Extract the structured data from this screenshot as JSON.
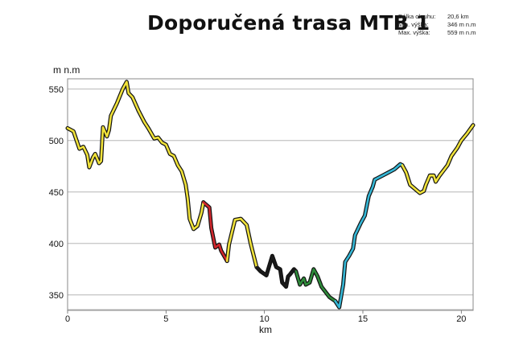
{
  "header": {
    "title": "Doporučená trasa MTB 1",
    "stats": [
      {
        "label": "Délka okruhu:",
        "value": "20,6 km"
      },
      {
        "label": "Min. výška:",
        "value": "346 m n.m"
      },
      {
        "label": "Max. výška:",
        "value": "559 m n.m"
      }
    ]
  },
  "chart_data": {
    "type": "line",
    "title": "Doporučená trasa MTB 1",
    "xlabel": "km",
    "ylabel": "m n.m",
    "xlim": [
      0,
      20.6
    ],
    "ylim": [
      335,
      560
    ],
    "x_ticks": [
      0,
      5,
      10,
      15,
      20
    ],
    "y_ticks": [
      350,
      400,
      450,
      500,
      550
    ],
    "grid": "horizontal",
    "segments": [
      {
        "color": "#f0e23a",
        "x": [
          0,
          0.3,
          0.6,
          0.8,
          1.0,
          1.1,
          1.3,
          1.4,
          1.6,
          1.7,
          1.8,
          2.0,
          2.1,
          2.2,
          2.5,
          2.8,
          3.0,
          3.1,
          3.3,
          3.6,
          3.9,
          4.1,
          4.4,
          4.6,
          4.8,
          5.0,
          5.2,
          5.4,
          5.6,
          5.8,
          6.0,
          6.1,
          6.2,
          6.4,
          6.6,
          6.8,
          6.9
        ],
        "y": [
          512,
          509,
          492,
          494,
          486,
          474,
          484,
          487,
          478,
          480,
          513,
          504,
          510,
          524,
          536,
          550,
          557,
          546,
          542,
          529,
          518,
          512,
          502,
          503,
          498,
          496,
          487,
          485,
          476,
          470,
          457,
          444,
          424,
          414,
          417,
          430,
          440
        ]
      },
      {
        "color": "#d0262c",
        "x": [
          6.9,
          7.2,
          7.3,
          7.5,
          7.7,
          7.8,
          8.1
        ],
        "y": [
          440,
          435,
          415,
          396,
          399,
          393,
          383
        ]
      },
      {
        "color": "#f0e23a",
        "x": [
          8.1,
          8.2,
          8.5,
          8.8,
          9.1,
          9.3,
          9.6
        ],
        "y": [
          383,
          399,
          423,
          424,
          418,
          400,
          377
        ]
      },
      {
        "color": "#1a1a1a",
        "x": [
          9.6,
          9.8,
          10.1,
          10.4,
          10.6,
          10.8,
          10.9,
          11.1,
          11.2,
          11.3,
          11.5,
          11.6
        ],
        "y": [
          377,
          373,
          369,
          388,
          377,
          375,
          362,
          358,
          368,
          370,
          375,
          373
        ]
      },
      {
        "color": "#2e8b3a",
        "x": [
          11.6,
          11.8,
          12.0,
          12.1,
          12.3,
          12.5,
          12.7,
          12.9,
          13.1,
          13.3,
          13.6
        ],
        "y": [
          373,
          360,
          366,
          360,
          362,
          375,
          368,
          358,
          353,
          348,
          344
        ]
      },
      {
        "color": "#35b7d6",
        "x": [
          13.6,
          13.8,
          14.0,
          14.1,
          14.3,
          14.5,
          14.6,
          14.9,
          15.1,
          15.3,
          15.5,
          15.6,
          15.7,
          16.2,
          16.6,
          16.9,
          17.0
        ],
        "y": [
          344,
          338,
          360,
          382,
          388,
          395,
          408,
          420,
          427,
          446,
          455,
          462,
          463,
          468,
          472,
          477,
          476
        ]
      },
      {
        "color": "#f0e23a",
        "x": [
          17.0,
          17.2,
          17.4,
          17.9,
          18.1,
          18.2,
          18.4,
          18.6,
          18.7,
          18.9,
          19.1,
          19.3,
          19.5,
          19.8,
          20.0,
          20.3,
          20.6
        ],
        "y": [
          476,
          469,
          457,
          449,
          451,
          457,
          466,
          466,
          460,
          466,
          471,
          476,
          485,
          493,
          500,
          507,
          515
        ]
      }
    ]
  }
}
